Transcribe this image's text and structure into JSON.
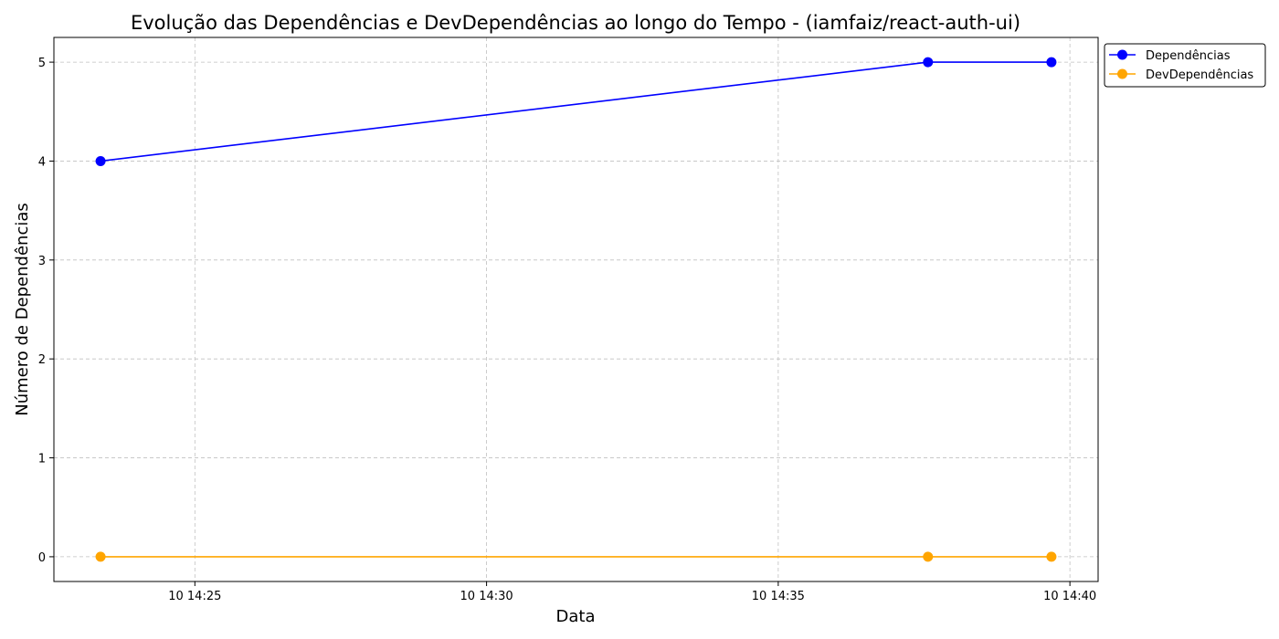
{
  "chart_data": {
    "type": "line",
    "title": "Evolução das Dependências e DevDependências ao longo do Tempo - (iamfaiz/react-auth-ui)",
    "xlabel": "Data",
    "ylabel": "Número de Dependências",
    "x": [
      "10 14:23:23",
      "10 14:37:34",
      "10 14:39:41"
    ],
    "x_ticks": [
      "10 14:25",
      "10 14:30",
      "10 14:35",
      "10 14:40"
    ],
    "xlim": [
      "10 14:22:35",
      "10 14:40:29"
    ],
    "y_ticks": [
      0,
      1,
      2,
      3,
      4,
      5
    ],
    "ylim": [
      -0.25,
      5.25
    ],
    "grid": true,
    "legend_position": "outside top-right",
    "series": [
      {
        "name": "Dependências",
        "color": "#0000ff",
        "marker": "circle",
        "values": [
          4,
          5,
          5
        ]
      },
      {
        "name": "DevDependências",
        "color": "#ffa500",
        "marker": "circle",
        "values": [
          0,
          0,
          0
        ]
      }
    ]
  }
}
